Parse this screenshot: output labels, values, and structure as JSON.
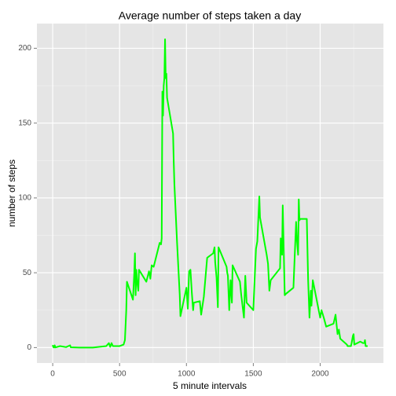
{
  "chart_data": {
    "type": "line",
    "title": "Average number of steps taken a day",
    "xlabel": "5 minute intervals",
    "ylabel": "number of steps",
    "xlim": [
      -118,
      2473
    ],
    "ylim": [
      -10.3,
      216.5
    ],
    "xticks": [
      0,
      500,
      1000,
      1500,
      2000
    ],
    "yticks": [
      0,
      50,
      100,
      150,
      200
    ],
    "grid": true,
    "color": "#00ff00",
    "x": [
      0,
      5,
      10,
      15,
      20,
      55,
      100,
      130,
      135,
      200,
      300,
      400,
      420,
      430,
      440,
      450,
      500,
      530,
      540,
      550,
      555,
      600,
      610,
      615,
      620,
      625,
      630,
      640,
      645,
      700,
      720,
      730,
      740,
      755,
      800,
      810,
      815,
      820,
      825,
      830,
      835,
      840,
      845,
      850,
      855,
      900,
      905,
      910,
      930,
      950,
      955,
      1000,
      1010,
      1020,
      1030,
      1040,
      1050,
      1055,
      1100,
      1110,
      1130,
      1155,
      1200,
      1210,
      1215,
      1225,
      1235,
      1240,
      1300,
      1305,
      1310,
      1320,
      1330,
      1340,
      1345,
      1400,
      1410,
      1430,
      1440,
      1450,
      1500,
      1520,
      1530,
      1545,
      1550,
      1600,
      1610,
      1620,
      1630,
      1700,
      1705,
      1715,
      1720,
      1735,
      1745,
      1800,
      1820,
      1825,
      1835,
      1840,
      1845,
      1850,
      1900,
      1910,
      1920,
      1930,
      1935,
      1945,
      2000,
      2010,
      2030,
      2045,
      2100,
      2115,
      2130,
      2140,
      2150,
      2200,
      2205,
      2230,
      2235,
      2245,
      2250,
      2255,
      2300,
      2320,
      2330,
      2335,
      2340,
      2355
    ],
    "values": [
      1.7,
      0.3,
      0.1,
      1.5,
      0.1,
      1,
      0.3,
      1.5,
      0.2,
      0,
      0,
      1,
      3,
      0.5,
      3,
      1,
      1,
      2,
      5,
      25,
      44,
      32,
      50,
      63,
      35,
      52,
      45,
      38,
      52,
      44,
      51,
      46,
      55,
      54,
      70,
      69,
      73,
      171,
      155,
      175,
      180,
      206,
      180,
      183,
      167,
      143,
      124,
      109,
      70,
      35,
      21,
      40,
      26,
      51,
      52,
      37,
      25,
      30,
      31,
      22,
      34,
      60,
      63,
      67,
      57,
      47,
      27,
      67,
      54,
      50,
      48,
      25,
      45,
      30,
      55,
      44,
      35,
      20,
      48,
      30,
      25,
      66,
      71,
      101,
      87,
      62,
      56,
      38,
      45,
      53,
      73,
      62,
      95,
      35,
      36,
      40,
      84,
      73,
      62,
      99,
      85,
      86,
      86,
      45,
      20,
      38,
      28,
      45,
      20,
      25,
      19,
      14,
      16,
      22,
      9,
      12,
      6,
      2,
      1,
      1,
      3,
      8,
      9,
      2,
      4,
      3,
      3,
      5,
      1,
      1
    ]
  }
}
